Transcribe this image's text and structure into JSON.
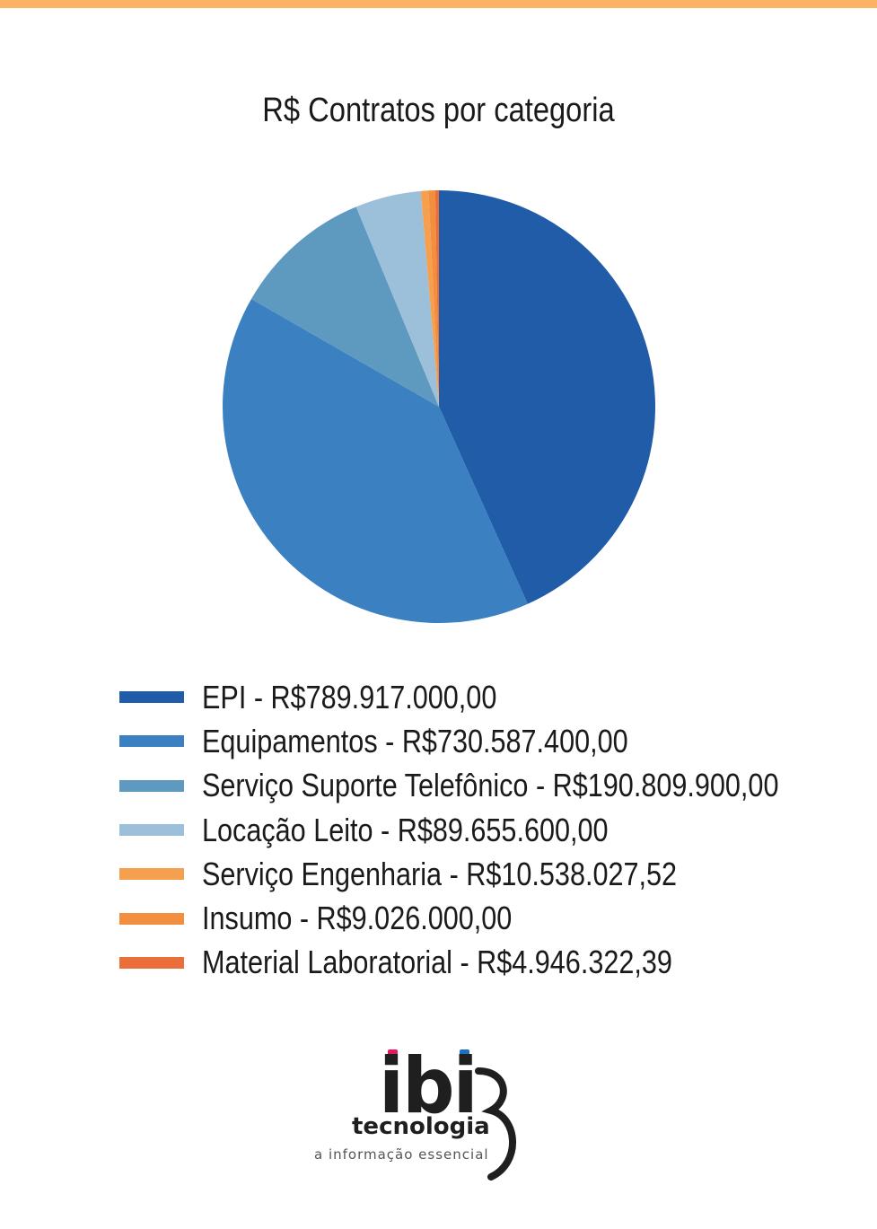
{
  "colors": {
    "top_bar": "#FDB366",
    "background": "#FFFFFF"
  },
  "chart_data": {
    "type": "pie",
    "title": "R$ Contratos por categoria",
    "legend_position": "bottom",
    "series": [
      {
        "name": "EPI",
        "label": "EPI - R$789.917.000,00",
        "value": 789917000.0,
        "color": "#215CA8"
      },
      {
        "name": "Equipamentos",
        "label": "Equipamentos - R$730.587.400,00",
        "value": 730587400.0,
        "color": "#3B80C0"
      },
      {
        "name": "Serviço Suporte Telefônico",
        "label": "Serviço Suporte Telefônico - R$190.809.900,00",
        "value": 190809900.0,
        "color": "#5E9AC0"
      },
      {
        "name": "Locação Leito",
        "label": "Locação Leito - R$89.655.600,00",
        "value": 89655600.0,
        "color": "#9DC0DA"
      },
      {
        "name": "Serviço Engenharia",
        "label": "Serviço Engenharia - R$10.538.027,52",
        "value": 10538027.52,
        "color": "#F5A04E"
      },
      {
        "name": "Insumo",
        "label": "Insumo - R$9.026.000,00",
        "value": 9026000.0,
        "color": "#F28E3D"
      },
      {
        "name": "Material Laboratorial",
        "label": "Material Laboratorial - R$4.946.322,39",
        "value": 4946322.39,
        "color": "#EA6E3A"
      }
    ]
  },
  "logo": {
    "word": "ibi",
    "subtitle": "tecnologia",
    "tagline": "a informação essencial",
    "dot_left_color": "#E8175D",
    "dot_right_color": "#1D6FBF"
  }
}
